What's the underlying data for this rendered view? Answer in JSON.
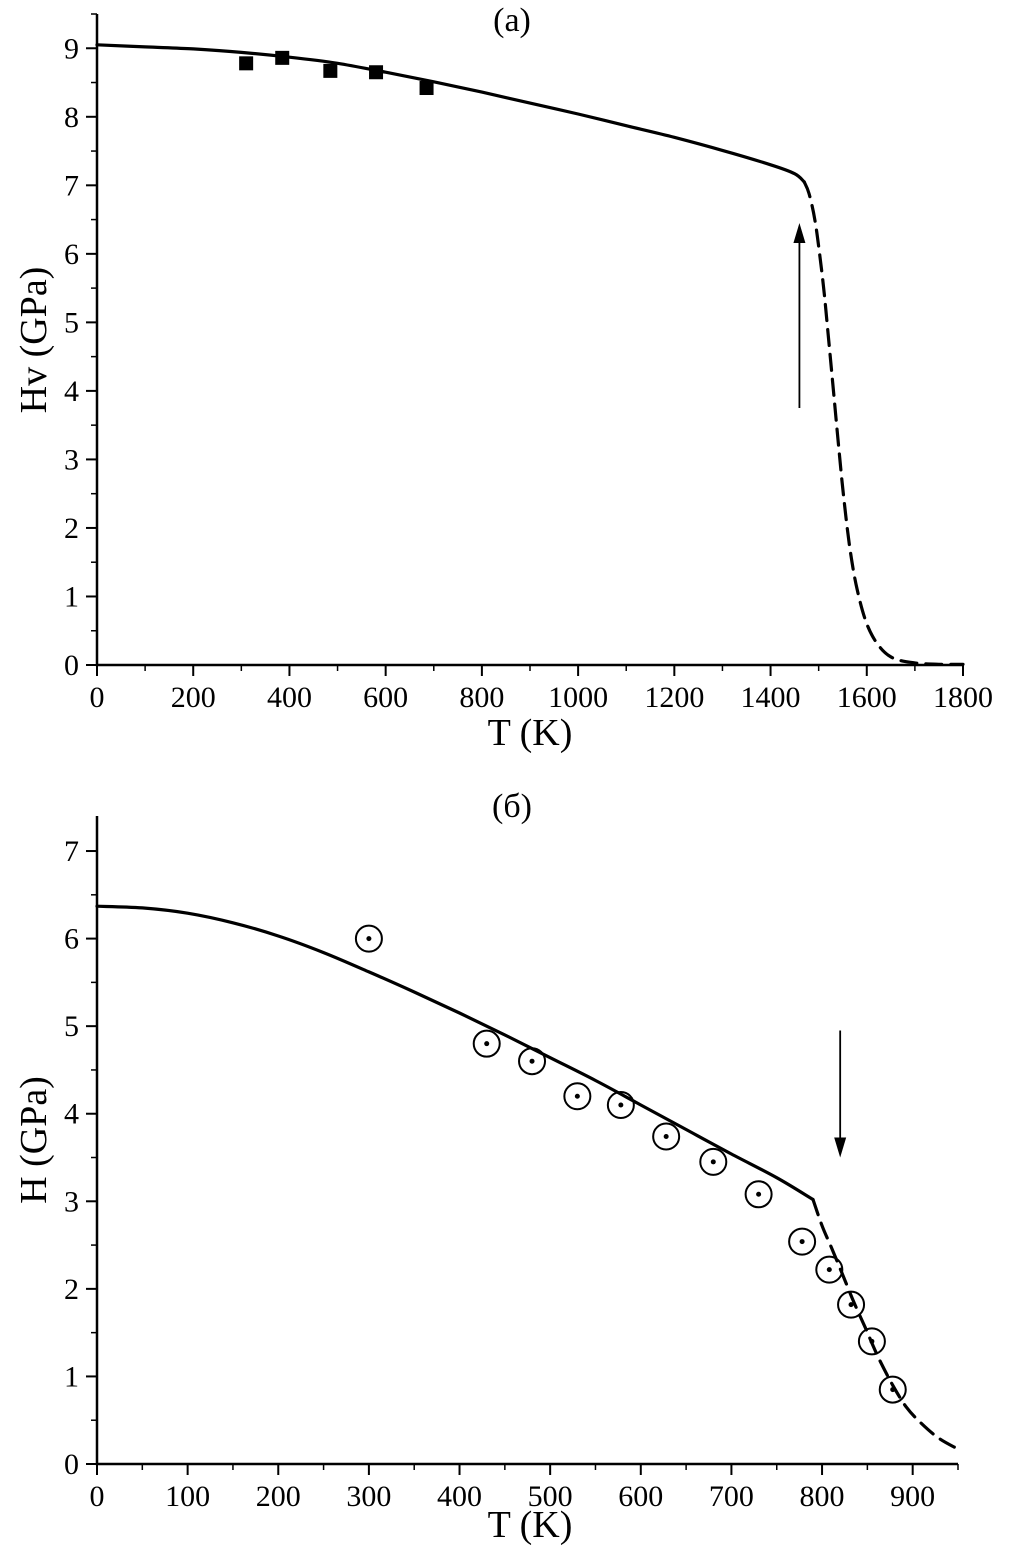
{
  "figure": {
    "background": "#ffffff",
    "line_color": "#000000"
  },
  "chart_data": [
    {
      "type": "line",
      "title": "(а)",
      "xlabel": "T (K)",
      "ylabel": "Hv (GPa)",
      "xlim": [
        0,
        1800
      ],
      "ylim": [
        0,
        9.5
      ],
      "xticks": [
        0,
        200,
        400,
        600,
        800,
        1000,
        1200,
        1400,
        1600,
        1800
      ],
      "yticks": [
        0,
        1,
        2,
        3,
        4,
        5,
        6,
        7,
        8,
        9
      ],
      "x_minor_step": 100,
      "y_minor_step": 0.5,
      "grid": false,
      "legend": false,
      "series": [
        {
          "name": "model-curve-solid",
          "style": "solid",
          "points": [
            [
              0,
              9.05
            ],
            [
              100,
              9.02
            ],
            [
              200,
              8.99
            ],
            [
              300,
              8.94
            ],
            [
              400,
              8.87
            ],
            [
              500,
              8.78
            ],
            [
              600,
              8.65
            ],
            [
              700,
              8.51
            ],
            [
              800,
              8.36
            ],
            [
              900,
              8.2
            ],
            [
              1000,
              8.04
            ],
            [
              1100,
              7.87
            ],
            [
              1200,
              7.7
            ],
            [
              1300,
              7.51
            ],
            [
              1400,
              7.3
            ],
            [
              1450,
              7.17
            ],
            [
              1470,
              7.05
            ]
          ]
        },
        {
          "name": "model-curve-dashed-transition",
          "style": "dashed",
          "points": [
            [
              1470,
              7.05
            ],
            [
              1480,
              6.88
            ],
            [
              1492,
              6.5
            ],
            [
              1502,
              6.0
            ],
            [
              1512,
              5.4
            ],
            [
              1522,
              4.65
            ],
            [
              1532,
              3.9
            ],
            [
              1542,
              3.15
            ],
            [
              1552,
              2.45
            ],
            [
              1565,
              1.7
            ],
            [
              1580,
              1.1
            ],
            [
              1600,
              0.6
            ],
            [
              1625,
              0.28
            ],
            [
              1655,
              0.1
            ],
            [
              1700,
              0.03
            ],
            [
              1750,
              0.01
            ],
            [
              1800,
              0.01
            ]
          ]
        }
      ],
      "markers": {
        "shape": "filled-square",
        "name": "experimental-points",
        "points": [
          [
            310,
            8.78
          ],
          [
            385,
            8.86
          ],
          [
            485,
            8.67
          ],
          [
            580,
            8.65
          ],
          [
            685,
            8.42
          ]
        ]
      },
      "arrow": {
        "x": 1460,
        "from_y": 3.75,
        "to_y": 6.45,
        "direction": "up"
      }
    },
    {
      "type": "line",
      "title": "(б)",
      "xlabel": "T (K)",
      "ylabel": "H (GPa)",
      "xlim": [
        0,
        950
      ],
      "ylim": [
        0,
        7.4
      ],
      "xticks": [
        0,
        100,
        200,
        300,
        400,
        500,
        600,
        700,
        800,
        900
      ],
      "yticks": [
        0,
        1,
        2,
        3,
        4,
        5,
        6,
        7
      ],
      "x_minor_step": 50,
      "y_minor_step": 0.5,
      "grid": false,
      "legend": false,
      "series": [
        {
          "name": "model-curve-solid",
          "style": "solid",
          "points": [
            [
              0,
              6.37
            ],
            [
              50,
              6.35
            ],
            [
              100,
              6.29
            ],
            [
              150,
              6.18
            ],
            [
              200,
              6.03
            ],
            [
              250,
              5.84
            ],
            [
              300,
              5.62
            ],
            [
              350,
              5.39
            ],
            [
              400,
              5.15
            ],
            [
              450,
              4.9
            ],
            [
              500,
              4.64
            ],
            [
              550,
              4.38
            ],
            [
              600,
              4.1
            ],
            [
              650,
              3.82
            ],
            [
              700,
              3.54
            ],
            [
              750,
              3.27
            ],
            [
              790,
              3.02
            ]
          ]
        },
        {
          "name": "model-curve-dashed-transition",
          "style": "dashed",
          "points": [
            [
              790,
              3.02
            ],
            [
              800,
              2.72
            ],
            [
              810,
              2.48
            ],
            [
              822,
              2.18
            ],
            [
              835,
              1.85
            ],
            [
              848,
              1.55
            ],
            [
              862,
              1.22
            ],
            [
              878,
              0.9
            ],
            [
              893,
              0.65
            ],
            [
              908,
              0.48
            ],
            [
              928,
              0.3
            ],
            [
              950,
              0.17
            ]
          ]
        }
      ],
      "markers": {
        "shape": "open-circle-dot",
        "name": "experimental-points",
        "points": [
          [
            300,
            6.0
          ],
          [
            430,
            4.8
          ],
          [
            480,
            4.6
          ],
          [
            530,
            4.2
          ],
          [
            578,
            4.1
          ],
          [
            628,
            3.74
          ],
          [
            680,
            3.45
          ],
          [
            730,
            3.08
          ],
          [
            778,
            2.54
          ],
          [
            808,
            2.22
          ],
          [
            832,
            1.82
          ],
          [
            855,
            1.4
          ],
          [
            878,
            0.85
          ]
        ]
      },
      "arrow": {
        "x": 820,
        "from_y": 4.95,
        "to_y": 3.5,
        "direction": "down"
      }
    }
  ]
}
